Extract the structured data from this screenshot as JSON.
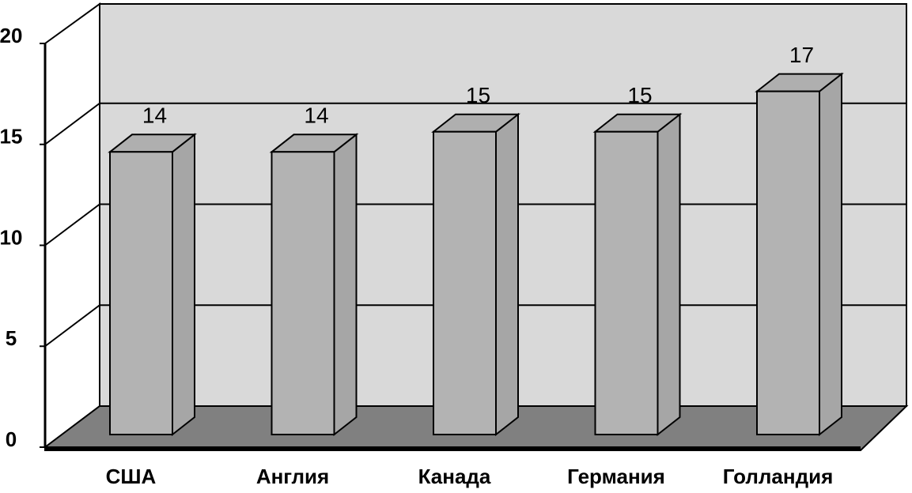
{
  "chart_data": {
    "type": "bar3d",
    "categories": [
      "США",
      "Англия",
      "Канада",
      "Германия",
      "Голландия"
    ],
    "values": [
      14,
      14,
      15,
      15,
      17
    ],
    "color": "#b3b3b3",
    "ylim": [
      0,
      20
    ],
    "yticks": [
      0,
      5,
      10,
      15,
      20
    ],
    "grid": true
  }
}
